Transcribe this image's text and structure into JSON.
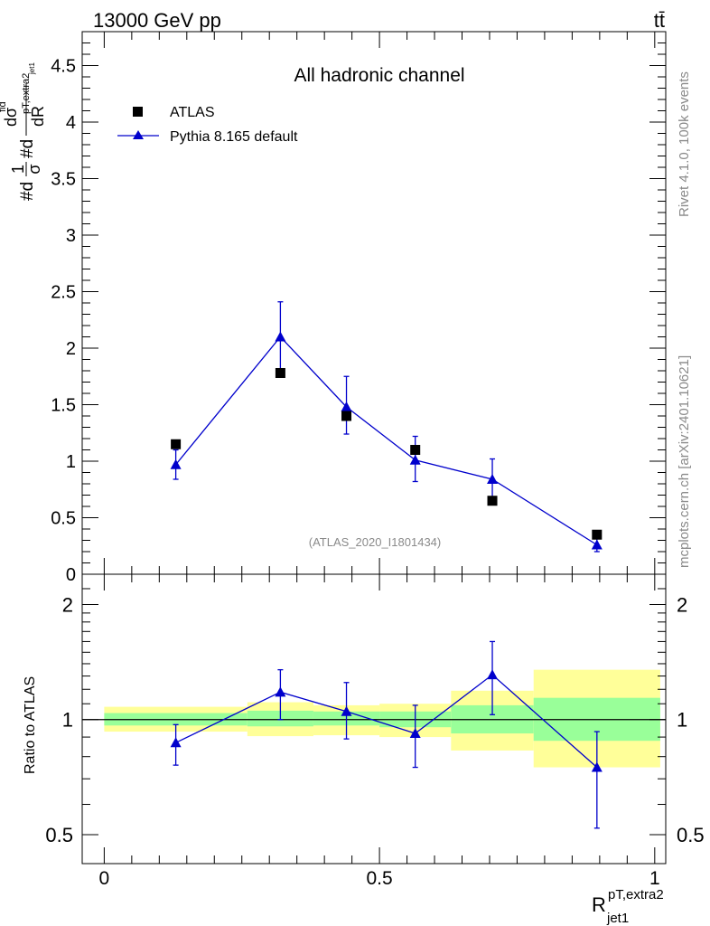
{
  "header": {
    "energy": "13000 GeV pp",
    "process": "tt̄"
  },
  "side_text": {
    "rivet": "Rivet 4.1.0,  100k events",
    "mcplots": "mcplots.cern.ch [arXiv:2401.10621]"
  },
  "chart_data": [
    {
      "type": "scatter",
      "panel": "main",
      "title": "All hadronic channel",
      "analysis_tag": "(ATLAS_2020_I1801434)",
      "ylabel_parts": {
        "num1": "1",
        "den1": "σ",
        "num2": "dσ",
        "fid": "fid",
        "den2": "dR",
        "sub": "jet1",
        "sup": "pT,extra2"
      },
      "xlabel": {
        "base": "R",
        "sup": "pT,extra2",
        "sub": "jet1"
      },
      "xlim": [
        -0.04,
        1.02
      ],
      "ylim": [
        0,
        4.8
      ],
      "yticks": [
        0,
        0.5,
        1,
        1.5,
        2,
        2.5,
        3,
        3.5,
        4,
        4.5
      ],
      "ytick_labels": [
        "0",
        "0.5",
        "1",
        "1.5",
        "2",
        "2.5",
        "3",
        "3.5",
        "4",
        "4.5"
      ],
      "legend": {
        "position": "top-left",
        "entries": [
          "ATLAS",
          "Pythia 8.165 default"
        ]
      },
      "series": [
        {
          "name": "ATLAS",
          "marker": "square",
          "color": "#000000",
          "points": [
            {
              "x": 0.13,
              "y": 1.15
            },
            {
              "x": 0.32,
              "y": 1.78
            },
            {
              "x": 0.44,
              "y": 1.4
            },
            {
              "x": 0.565,
              "y": 1.1
            },
            {
              "x": 0.705,
              "y": 0.65
            },
            {
              "x": 0.895,
              "y": 0.35
            }
          ]
        },
        {
          "name": "Pythia 8.165 default",
          "marker": "triangle",
          "color": "#0000cc",
          "points": [
            {
              "x": 0.13,
              "y": 0.97,
              "lo": 0.84,
              "hi": 1.1
            },
            {
              "x": 0.32,
              "y": 2.1,
              "lo": 1.78,
              "hi": 2.41
            },
            {
              "x": 0.44,
              "y": 1.48,
              "lo": 1.24,
              "hi": 1.75
            },
            {
              "x": 0.565,
              "y": 1.01,
              "lo": 0.82,
              "hi": 1.22
            },
            {
              "x": 0.705,
              "y": 0.84,
              "lo": 0.66,
              "hi": 1.02
            },
            {
              "x": 0.895,
              "y": 0.26,
              "lo": 0.2,
              "hi": 0.32
            }
          ]
        }
      ]
    },
    {
      "type": "scatter",
      "panel": "ratio",
      "ylabel": "Ratio to ATLAS",
      "ylim": [
        0.42,
        2.4
      ],
      "yscale": "log",
      "yticks": [
        0.5,
        1,
        2
      ],
      "ytick_labels": [
        "0.5",
        "1",
        "2"
      ],
      "xticks": [
        0,
        0.5,
        1
      ],
      "xtick_labels": [
        "0",
        "0.5",
        "1"
      ],
      "uncertainty_bands": [
        {
          "xlo": 0.0,
          "xhi": 0.26,
          "inner": [
            0.965,
            1.04
          ],
          "outer": [
            0.93,
            1.08
          ]
        },
        {
          "xlo": 0.26,
          "xhi": 0.38,
          "inner": [
            0.96,
            1.055
          ],
          "outer": [
            0.905,
            1.11
          ]
        },
        {
          "xlo": 0.38,
          "xhi": 0.5,
          "inner": [
            0.965,
            1.05
          ],
          "outer": [
            0.91,
            1.09
          ]
        },
        {
          "xlo": 0.5,
          "xhi": 0.63,
          "inner": [
            0.955,
            1.05
          ],
          "outer": [
            0.9,
            1.1
          ]
        },
        {
          "xlo": 0.63,
          "xhi": 0.78,
          "inner": [
            0.92,
            1.09
          ],
          "outer": [
            0.83,
            1.19
          ]
        },
        {
          "xlo": 0.78,
          "xhi": 1.01,
          "inner": [
            0.88,
            1.14
          ],
          "outer": [
            0.75,
            1.35
          ]
        }
      ],
      "series": [
        {
          "name": "Pythia 8.165 default / ATLAS",
          "marker": "triangle",
          "color": "#0000cc",
          "points": [
            {
              "x": 0.13,
              "y": 0.87,
              "lo": 0.76,
              "hi": 0.97
            },
            {
              "x": 0.32,
              "y": 1.18,
              "lo": 1.0,
              "hi": 1.35
            },
            {
              "x": 0.44,
              "y": 1.05,
              "lo": 0.89,
              "hi": 1.25
            },
            {
              "x": 0.565,
              "y": 0.92,
              "lo": 0.75,
              "hi": 1.09
            },
            {
              "x": 0.705,
              "y": 1.31,
              "lo": 1.03,
              "hi": 1.6
            },
            {
              "x": 0.895,
              "y": 0.75,
              "lo": 0.52,
              "hi": 0.93
            }
          ]
        }
      ]
    }
  ]
}
